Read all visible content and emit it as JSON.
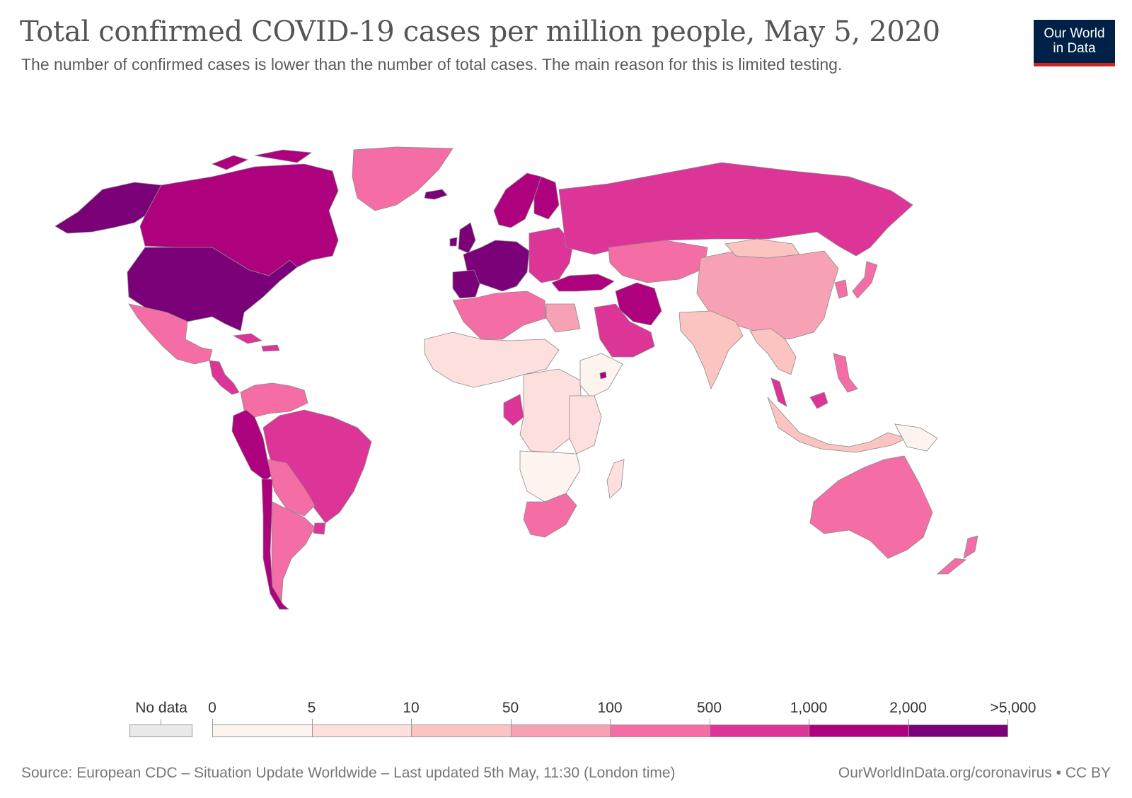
{
  "header": {
    "title": "Total confirmed COVID-19 cases per million people, May 5, 2020",
    "subtitle": "The number of confirmed cases is lower than the number of total cases. The main reason for this is limited testing."
  },
  "logo": {
    "line1": "Our World",
    "line2": "in Data",
    "bg_color": "#002147",
    "accent_color": "#ce261e"
  },
  "legend": {
    "no_data_label": "No data",
    "no_data_color": "#e9e9e9",
    "breakpoints": [
      "0",
      "5",
      "10",
      "50",
      "100",
      "500",
      "1,000",
      "2,000",
      ">5,000"
    ],
    "colors": [
      "#fdf4f0",
      "#fde0dd",
      "#fbc4c0",
      "#f7a1b5",
      "#f56da5",
      "#dd3497",
      "#ae017e",
      "#7a0177"
    ]
  },
  "map_data": {
    "metric": "Total confirmed COVID-19 cases per million people",
    "date": "May 5, 2020",
    "regions": [
      {
        "name": "Alaska",
        "bin": 7
      },
      {
        "name": "Canada",
        "bin": 6
      },
      {
        "name": "Greenland",
        "bin": 4
      },
      {
        "name": "United States",
        "bin": 7
      },
      {
        "name": "Mexico",
        "bin": 4
      },
      {
        "name": "Central America",
        "bin": 5
      },
      {
        "name": "Caribbean",
        "bin": 5
      },
      {
        "name": "Colombia / Venezuela",
        "bin": 4
      },
      {
        "name": "Ecuador / Peru",
        "bin": 6
      },
      {
        "name": "Brazil",
        "bin": 5
      },
      {
        "name": "Bolivia / Paraguay",
        "bin": 4
      },
      {
        "name": "Chile",
        "bin": 6
      },
      {
        "name": "Argentina",
        "bin": 4
      },
      {
        "name": "Uruguay",
        "bin": 5
      },
      {
        "name": "Iceland",
        "bin": 7
      },
      {
        "name": "Norway / Sweden",
        "bin": 6
      },
      {
        "name": "Finland",
        "bin": 6
      },
      {
        "name": "UK / Ireland",
        "bin": 7
      },
      {
        "name": "Western Europe",
        "bin": 7
      },
      {
        "name": "Spain / Portugal",
        "bin": 7
      },
      {
        "name": "Eastern Europe",
        "bin": 5
      },
      {
        "name": "Russia",
        "bin": 5
      },
      {
        "name": "Kazakhstan / Central Asia",
        "bin": 4
      },
      {
        "name": "Turkey",
        "bin": 6
      },
      {
        "name": "Iran",
        "bin": 6
      },
      {
        "name": "Saudi Arabia / Gulf",
        "bin": 5
      },
      {
        "name": "China",
        "bin": 3
      },
      {
        "name": "Mongolia",
        "bin": 2
      },
      {
        "name": "Korea / Japan",
        "bin": 4
      },
      {
        "name": "India / South Asia",
        "bin": 2
      },
      {
        "name": "Southeast Asia",
        "bin": 2
      },
      {
        "name": "Malaysia",
        "bin": 5
      },
      {
        "name": "Indonesia",
        "bin": 2
      },
      {
        "name": "Philippines",
        "bin": 4
      },
      {
        "name": "Papua New Guinea",
        "bin": 0
      },
      {
        "name": "Australia",
        "bin": 4
      },
      {
        "name": "New Zealand",
        "bin": 4
      },
      {
        "name": "North Africa",
        "bin": 4
      },
      {
        "name": "Egypt",
        "bin": 3
      },
      {
        "name": "Sahel / West Africa",
        "bin": 1
      },
      {
        "name": "Central Africa",
        "bin": 1
      },
      {
        "name": "Gabon / Cameroon",
        "bin": 5
      },
      {
        "name": "Horn of Africa",
        "bin": 0
      },
      {
        "name": "East Africa",
        "bin": 1
      },
      {
        "name": "Southern Africa",
        "bin": 0
      },
      {
        "name": "South Africa",
        "bin": 4
      },
      {
        "name": "Madagascar",
        "bin": 1
      },
      {
        "name": "Djibouti",
        "bin": 6
      }
    ]
  },
  "footer": {
    "source": "Source: European CDC – Situation Update Worldwide – Last updated 5th May, 11:30 (London time)",
    "credit": "OurWorldInData.org/coronavirus • CC BY"
  }
}
